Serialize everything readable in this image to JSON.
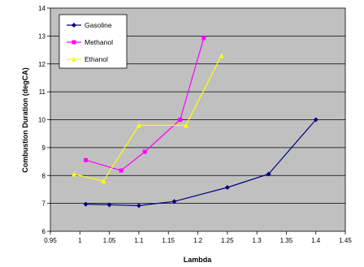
{
  "chart_data": {
    "type": "line",
    "xlabel": "Lambda",
    "ylabel": "Combustion Duration (degCA)",
    "xlim": [
      0.95,
      1.45
    ],
    "ylim": [
      6,
      14
    ],
    "x_ticks": [
      "0.95",
      "1",
      "1.05",
      "1.1",
      "1.15",
      "1.2",
      "1.25",
      "1.3",
      "1.35",
      "1.4",
      "1.45"
    ],
    "y_ticks": [
      "6",
      "7",
      "8",
      "9",
      "10",
      "11",
      "12",
      "13",
      "14"
    ],
    "grid": "horizontal",
    "plot_background": "#c0c0c0",
    "legend_position": "top-left",
    "series": [
      {
        "name": "Gasoline",
        "color": "#000080",
        "marker": "diamond",
        "points": [
          [
            1.01,
            6.97
          ],
          [
            1.05,
            6.95
          ],
          [
            1.1,
            6.92
          ],
          [
            1.16,
            7.07
          ],
          [
            1.25,
            7.57
          ],
          [
            1.32,
            8.05
          ],
          [
            1.4,
            10.0
          ]
        ]
      },
      {
        "name": "Methanol",
        "color": "#ff00ff",
        "marker": "square",
        "points": [
          [
            1.01,
            8.55
          ],
          [
            1.07,
            8.18
          ],
          [
            1.11,
            8.85
          ],
          [
            1.17,
            10.0
          ],
          [
            1.21,
            12.93
          ]
        ]
      },
      {
        "name": "Ethanol",
        "color": "#ffff00",
        "marker": "triangle",
        "points": [
          [
            0.99,
            8.05
          ],
          [
            1.04,
            7.8
          ],
          [
            1.1,
            9.8
          ],
          [
            1.18,
            9.8
          ],
          [
            1.24,
            12.3
          ]
        ]
      }
    ]
  }
}
